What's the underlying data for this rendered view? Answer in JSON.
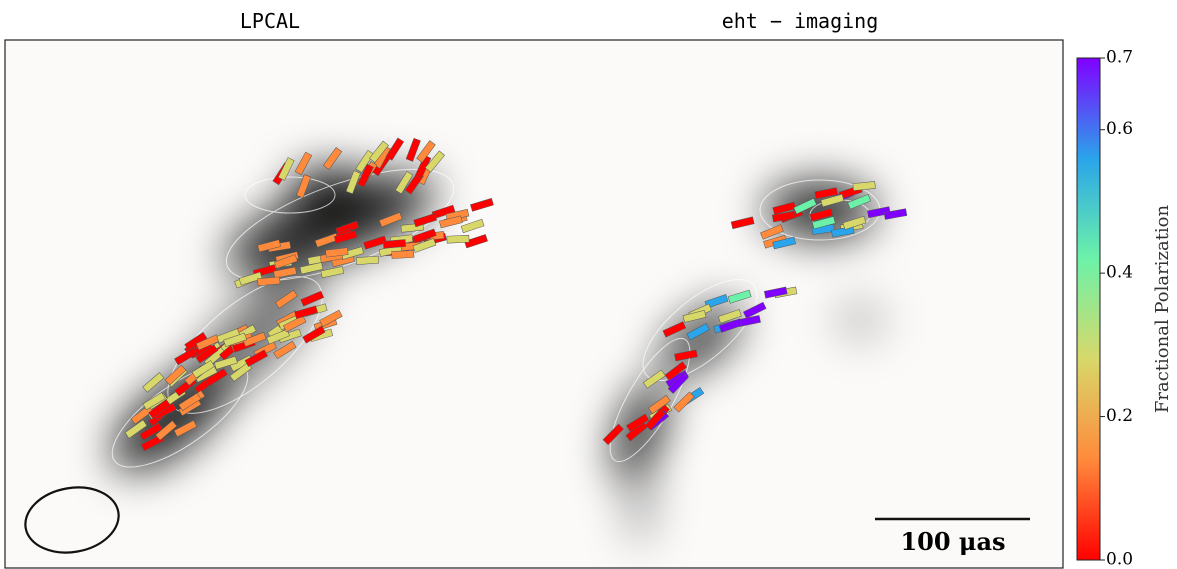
{
  "chart_data": {
    "type": "image",
    "panels": [
      {
        "title": "LPCAL"
      },
      {
        "title": "eht − imaging"
      }
    ],
    "scale_bar": "100 μas",
    "colorbar": {
      "label": "Fractional Polarization",
      "lim": [
        0,
        0.7
      ],
      "ticks": [
        {
          "value": 0,
          "label": "0.0"
        },
        {
          "value": 0.2,
          "label": "0.2"
        },
        0.4,
        0.6,
        0.7
      ],
      "colors": [
        "#ff0000",
        "#ff8a3c",
        "#d8d86a",
        "#6cf2a8",
        "#2aa4ea",
        "#8000ff"
      ]
    }
  }
}
